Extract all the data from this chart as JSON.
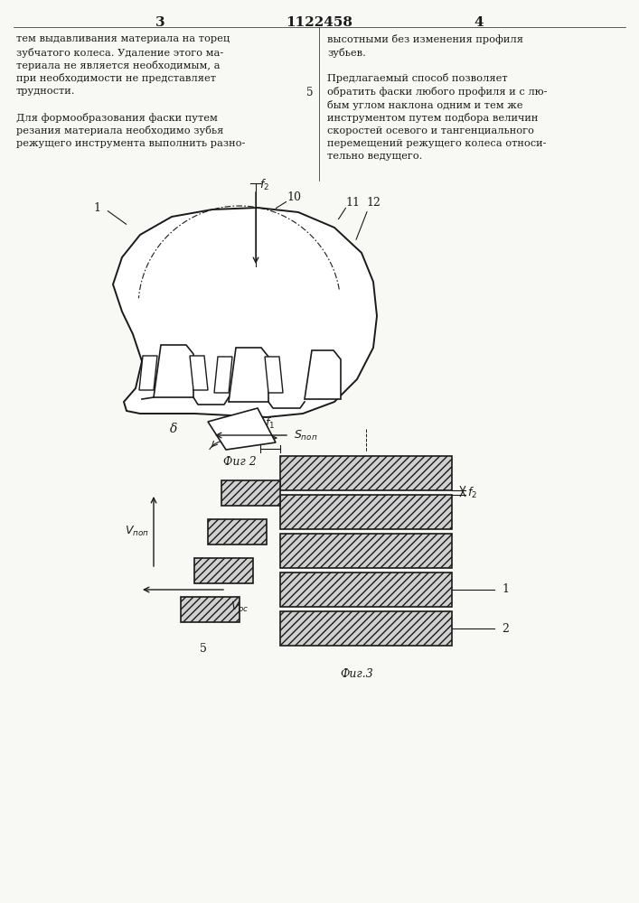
{
  "page_color": "#f8f8f4",
  "line_color": "#1a1a1a",
  "fill_color": "#d8d8d8",
  "patent_number": "1122458",
  "page_left": "3",
  "page_right": "4",
  "col_left_lines": [
    "тем выдавливания материала на торец",
    "зубчатого колеса. Удаление этого ма-",
    "териала не является необходимым, а",
    "при необходимости не представляет",
    "трудности.",
    "",
    "Для формообразования фаски путем",
    "резания материала необходимо зубья",
    "режущего инструмента выполнить разно-"
  ],
  "col_right_lines": [
    "высотными без изменения профиля",
    "зубьев.",
    "",
    "Предлагаемый способ позволяет",
    "обратить фаски любого профиля и с лю-",
    "бым углом наклона одним и тем же",
    "инструментом путем подбора величин",
    "скоростей осевого и тангенциального",
    "перемещений режущего колеса относи-",
    "тельно ведущего."
  ],
  "line_number_5": "5",
  "fig2_label": "Фиг 2",
  "fig3_label": "Фиг.3"
}
